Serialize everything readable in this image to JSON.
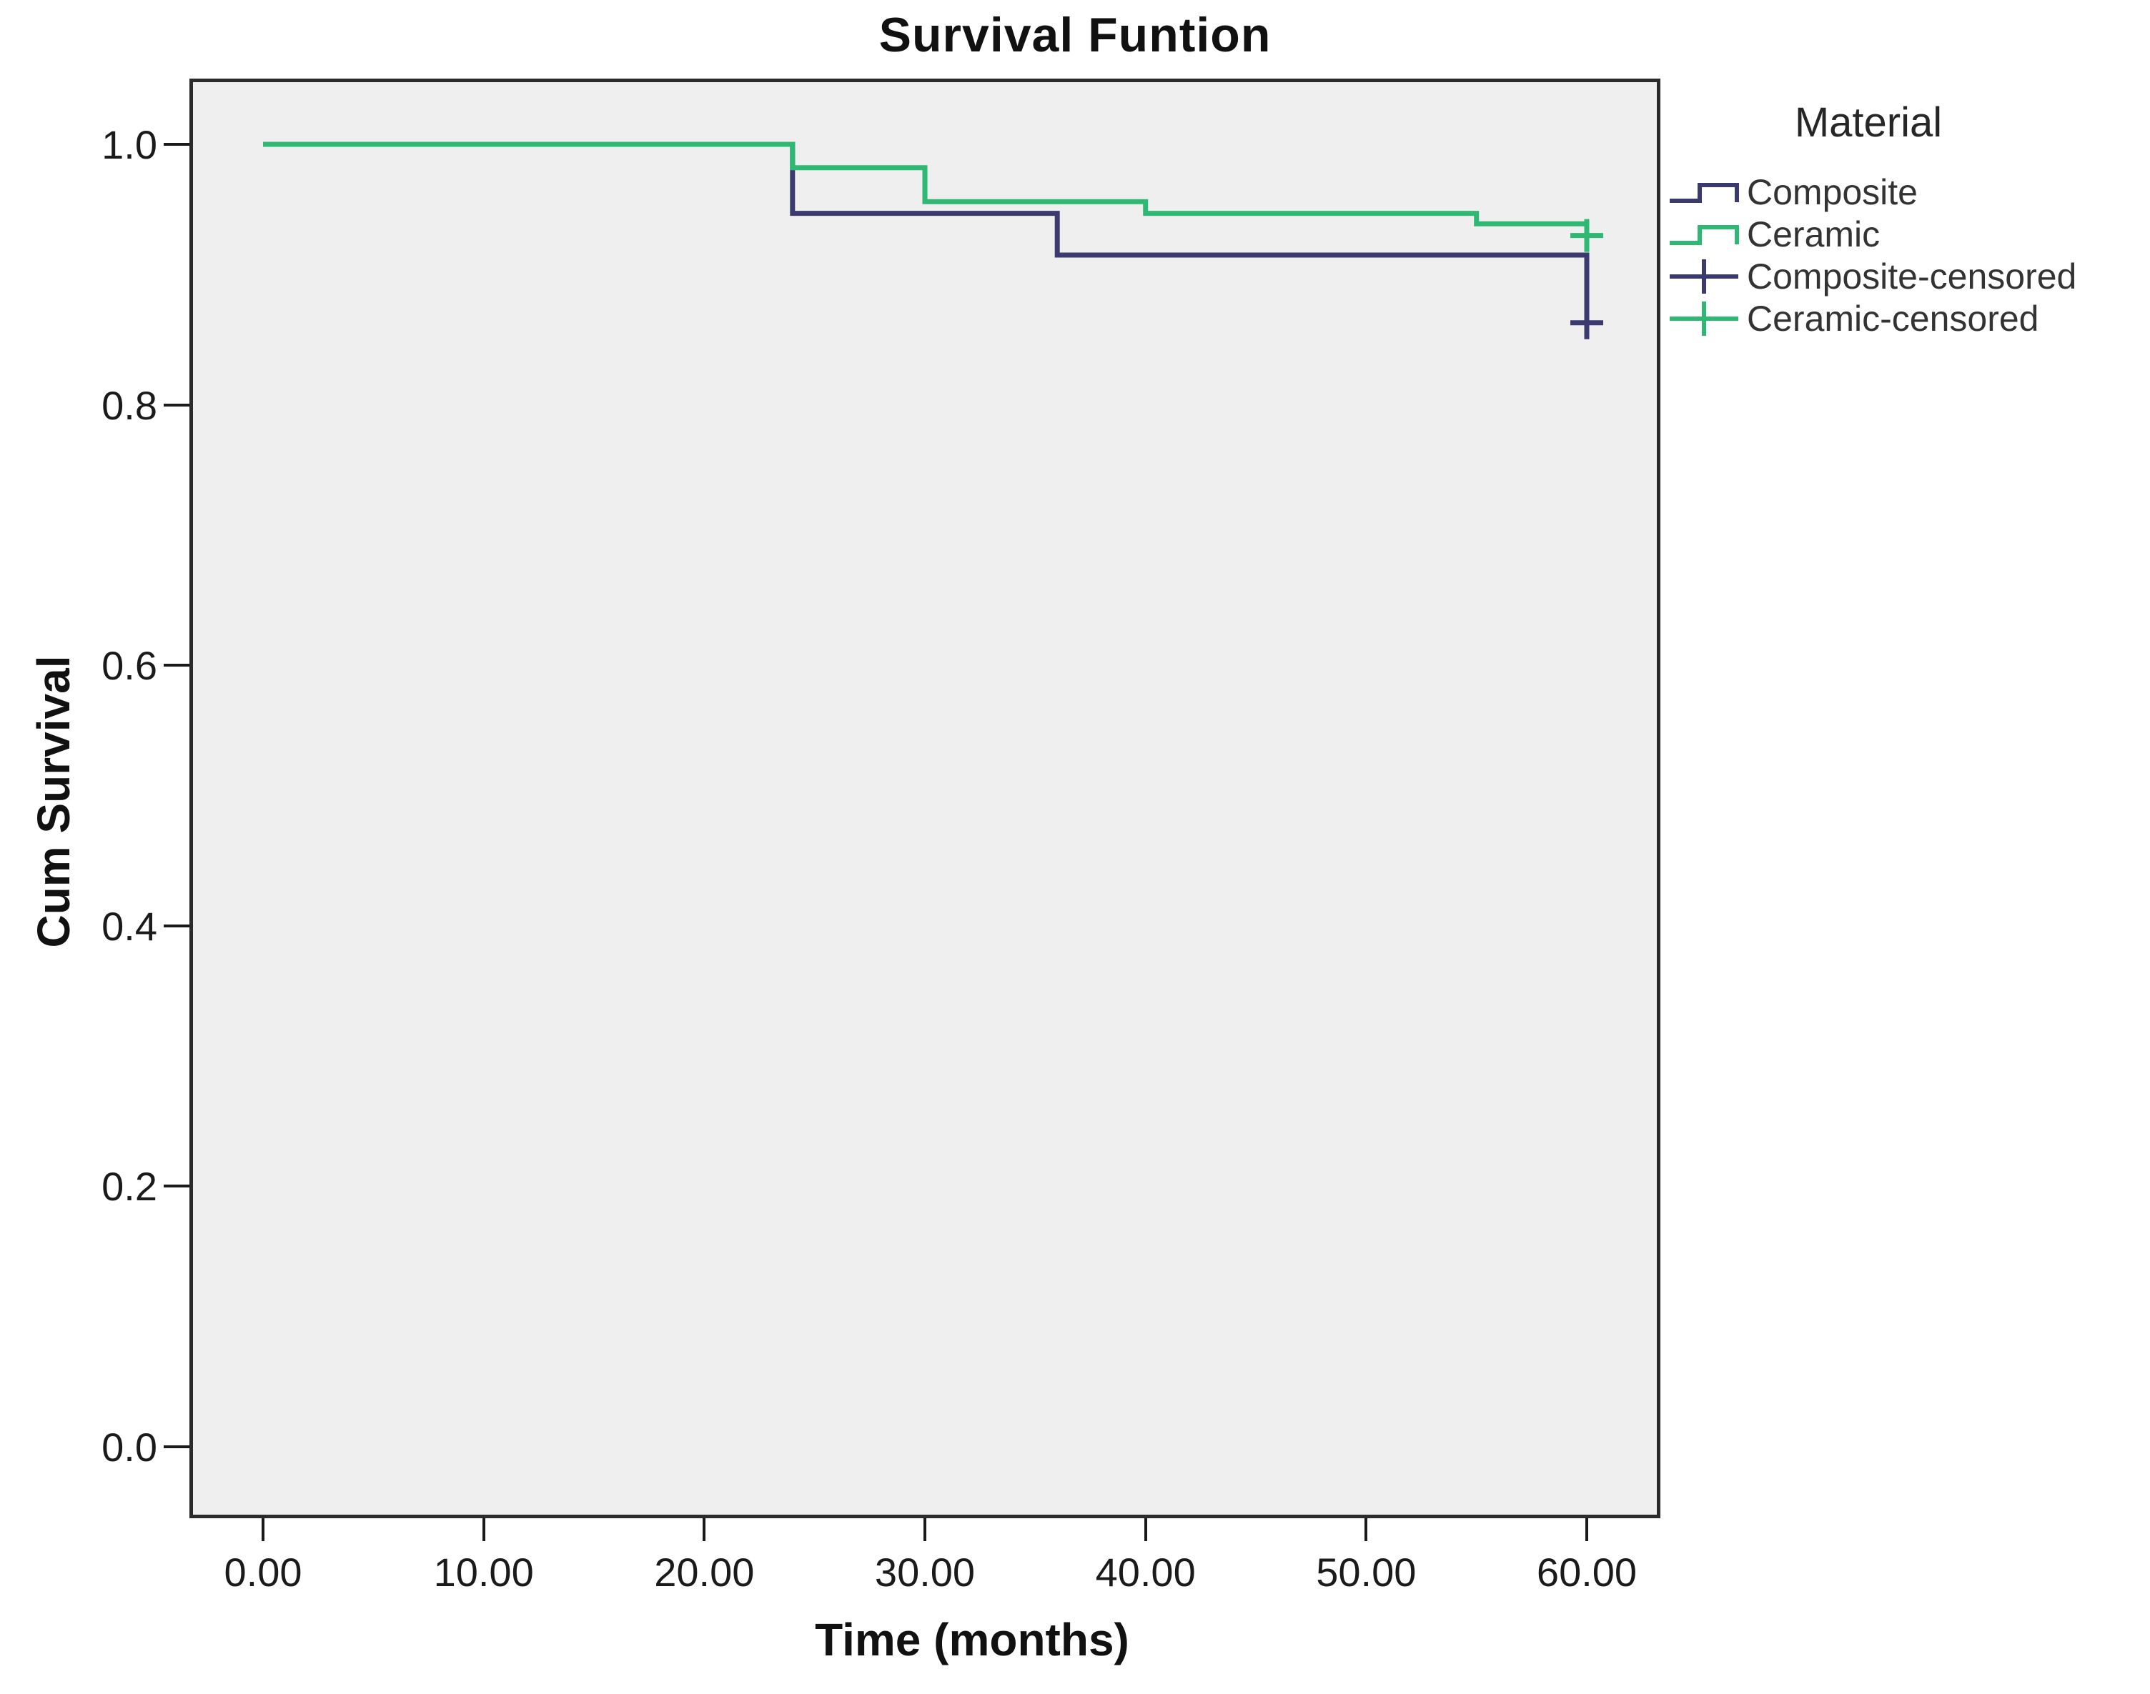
{
  "title": "Survival Funtion",
  "x_axis": {
    "label": "Time (months)",
    "tick_labels": [
      "0.00",
      "10.00",
      "20.00",
      "30.00",
      "40.00",
      "50.00",
      "60.00"
    ],
    "tick_values": [
      0,
      10,
      20,
      30,
      40,
      50,
      60
    ]
  },
  "y_axis": {
    "label": "Cum Survival",
    "tick_labels": [
      "1.0",
      "0.8",
      "0.6",
      "0.4",
      "0.2",
      "0.0"
    ],
    "tick_values": [
      1.0,
      0.8,
      0.6,
      0.4,
      0.2,
      0.0
    ]
  },
  "legend": {
    "title": "Material",
    "entries": [
      {
        "label": "Composite",
        "marker": "step",
        "color": "#3a3a6e"
      },
      {
        "label": "Ceramic",
        "marker": "step",
        "color": "#2eb873"
      },
      {
        "label": "Composite-censored",
        "marker": "plus",
        "color": "#3a3a6e"
      },
      {
        "label": "Ceramic-censored",
        "marker": "plus",
        "color": "#2eb873"
      }
    ]
  },
  "colors": {
    "composite": "#3a3a6e",
    "ceramic": "#2eb873",
    "plot_background": "#efefef",
    "frame": "#2b2b2b",
    "text": "#1a1a1a"
  },
  "chart_data": {
    "type": "line",
    "subtype": "kaplan_meier_step",
    "title": "Survival Funtion",
    "xlabel": "Time (months)",
    "ylabel": "Cum Survival",
    "xlim": [
      0,
      60
    ],
    "ylim": [
      0.0,
      1.0
    ],
    "x_ticks": [
      0,
      10,
      20,
      30,
      40,
      50,
      60
    ],
    "y_ticks": [
      1.0,
      0.8,
      0.6,
      0.4,
      0.2,
      0.0
    ],
    "grid": false,
    "legend_position": "right",
    "series": [
      {
        "name": "Composite",
        "color": "#3a3a6e",
        "step_points": [
          [
            0,
            1.0
          ],
          [
            24,
            0.947
          ],
          [
            36,
            0.915
          ],
          [
            60,
            0.863
          ]
        ],
        "censored": [
          [
            60,
            0.863
          ]
        ]
      },
      {
        "name": "Ceramic",
        "color": "#2eb873",
        "step_points": [
          [
            0,
            1.0
          ],
          [
            24,
            0.982
          ],
          [
            30,
            0.956
          ],
          [
            40,
            0.947
          ],
          [
            55,
            0.939
          ],
          [
            60,
            0.93
          ]
        ],
        "censored": [
          [
            60,
            0.93
          ]
        ]
      }
    ]
  }
}
